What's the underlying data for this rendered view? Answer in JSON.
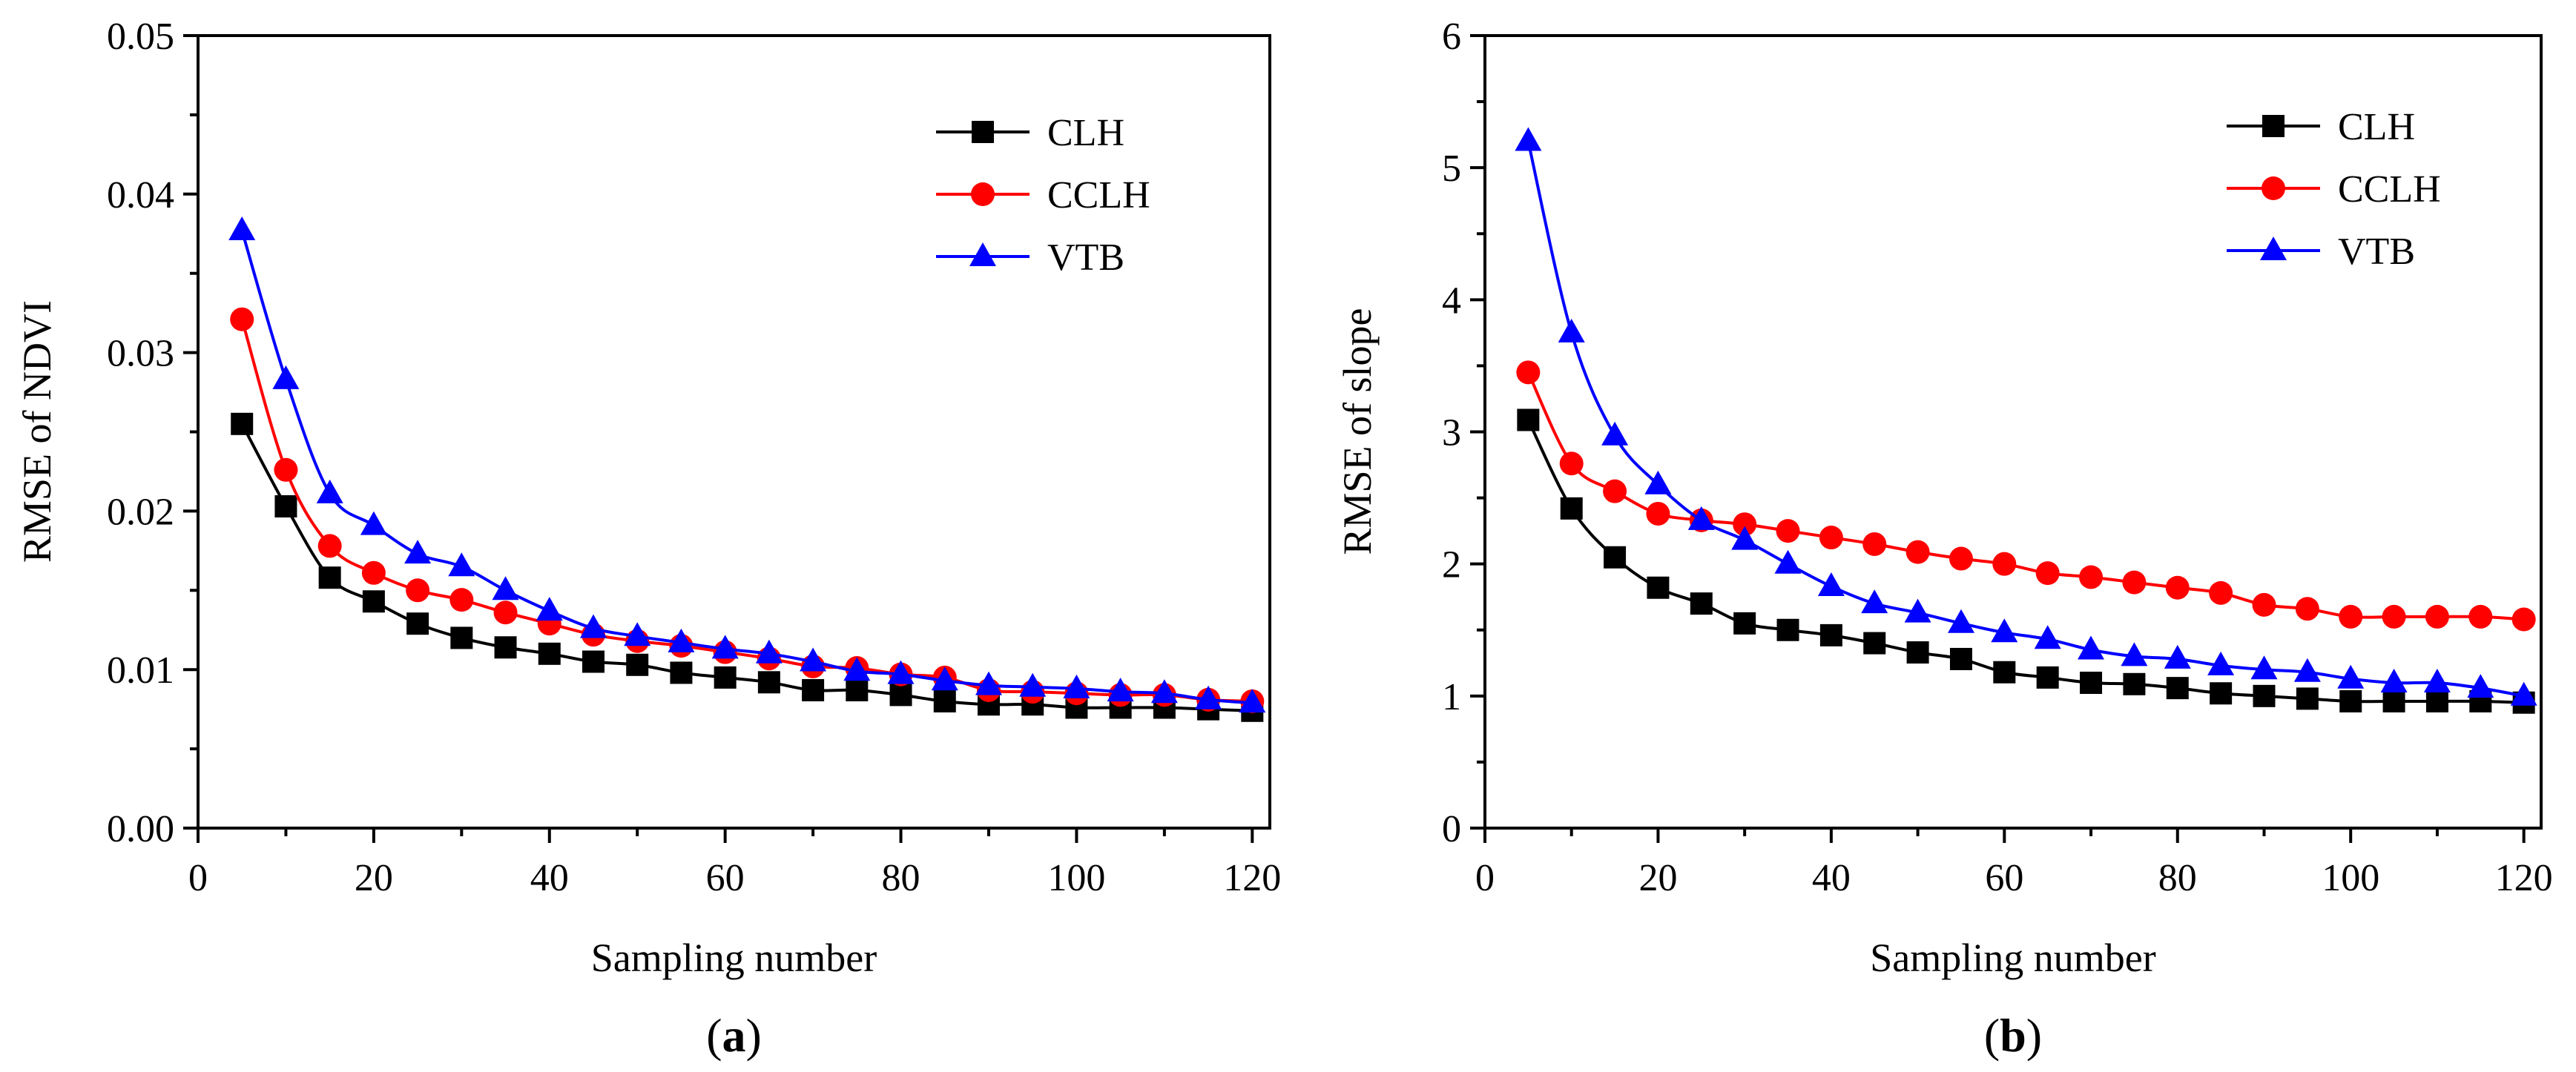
{
  "chart_data": [
    {
      "id": "a",
      "type": "line",
      "panel_label": "a",
      "title": "",
      "xlabel": "Sampling number",
      "ylabel": "RMSE of NDVI",
      "xlim": [
        0,
        122
      ],
      "ylim": [
        0,
        0.05
      ],
      "xticks": [
        0,
        20,
        40,
        60,
        80,
        100,
        120
      ],
      "xtick_labels": [
        "0",
        "20",
        "40",
        "60",
        "80",
        "100",
        "120"
      ],
      "yticks": [
        0,
        0.01,
        0.02,
        0.03,
        0.04,
        0.05
      ],
      "ytick_labels": [
        "0.00",
        "0.01",
        "0.02",
        "0.03",
        "0.04",
        "0.05"
      ],
      "legend_position": "top-right",
      "x": [
        5,
        10,
        15,
        20,
        25,
        30,
        35,
        40,
        45,
        50,
        55,
        60,
        65,
        70,
        75,
        80,
        85,
        90,
        95,
        100,
        105,
        110,
        115,
        120
      ],
      "series": [
        {
          "name": "CLH",
          "color": "#000000",
          "marker": "square",
          "values": [
            0.0255,
            0.0203,
            0.0158,
            0.0143,
            0.0129,
            0.012,
            0.0114,
            0.011,
            0.0105,
            0.0103,
            0.0098,
            0.0095,
            0.0092,
            0.0087,
            0.0087,
            0.0084,
            0.008,
            0.0078,
            0.0078,
            0.0076,
            0.0076,
            0.0076,
            0.0075,
            0.0074
          ]
        },
        {
          "name": "CCLH",
          "color": "#ff0000",
          "marker": "circle",
          "values": [
            0.0321,
            0.0226,
            0.0178,
            0.0161,
            0.015,
            0.0144,
            0.0136,
            0.0129,
            0.0122,
            0.0118,
            0.0115,
            0.0111,
            0.0107,
            0.0102,
            0.0101,
            0.0097,
            0.0095,
            0.0087,
            0.0086,
            0.0085,
            0.0084,
            0.0084,
            0.0081,
            0.008
          ]
        },
        {
          "name": "VTB",
          "color": "#0000ff",
          "marker": "triangle",
          "values": [
            0.0377,
            0.0283,
            0.0211,
            0.0191,
            0.0173,
            0.0165,
            0.015,
            0.0137,
            0.0126,
            0.0121,
            0.0117,
            0.0113,
            0.011,
            0.0105,
            0.0099,
            0.0097,
            0.0093,
            0.009,
            0.0089,
            0.0088,
            0.0086,
            0.0085,
            0.0081,
            0.0079
          ]
        }
      ]
    },
    {
      "id": "b",
      "type": "line",
      "panel_label": "b",
      "title": "",
      "xlabel": "Sampling number",
      "ylabel": "RMSE of slope",
      "xlim": [
        0,
        122
      ],
      "ylim": [
        0,
        6
      ],
      "xticks": [
        0,
        20,
        40,
        60,
        80,
        100,
        120
      ],
      "xtick_labels": [
        "0",
        "20",
        "40",
        "60",
        "80",
        "100",
        "120"
      ],
      "yticks": [
        0,
        1,
        2,
        3,
        4,
        5,
        6
      ],
      "ytick_labels": [
        "0",
        "1",
        "2",
        "3",
        "4",
        "5",
        "6"
      ],
      "legend_position": "top-right",
      "x": [
        5,
        10,
        15,
        20,
        25,
        30,
        35,
        40,
        45,
        50,
        55,
        60,
        65,
        70,
        75,
        80,
        85,
        90,
        95,
        100,
        105,
        110,
        115,
        120
      ],
      "series": [
        {
          "name": "CLH",
          "color": "#000000",
          "marker": "square",
          "values": [
            3.09,
            2.42,
            2.05,
            1.82,
            1.7,
            1.55,
            1.5,
            1.46,
            1.4,
            1.33,
            1.28,
            1.18,
            1.14,
            1.1,
            1.09,
            1.06,
            1.02,
            1.0,
            0.98,
            0.96,
            0.96,
            0.96,
            0.96,
            0.95
          ]
        },
        {
          "name": "CCLH",
          "color": "#ff0000",
          "marker": "circle",
          "values": [
            3.45,
            2.76,
            2.55,
            2.38,
            2.33,
            2.3,
            2.25,
            2.2,
            2.15,
            2.09,
            2.04,
            2.0,
            1.93,
            1.9,
            1.86,
            1.82,
            1.78,
            1.69,
            1.66,
            1.6,
            1.6,
            1.6,
            1.6,
            1.58
          ]
        },
        {
          "name": "VTB",
          "color": "#0000ff",
          "marker": "triangle",
          "values": [
            5.2,
            3.75,
            2.97,
            2.6,
            2.33,
            2.18,
            2.0,
            1.83,
            1.7,
            1.63,
            1.55,
            1.48,
            1.43,
            1.35,
            1.3,
            1.28,
            1.23,
            1.2,
            1.18,
            1.13,
            1.1,
            1.1,
            1.06,
            1.0
          ]
        }
      ]
    }
  ]
}
